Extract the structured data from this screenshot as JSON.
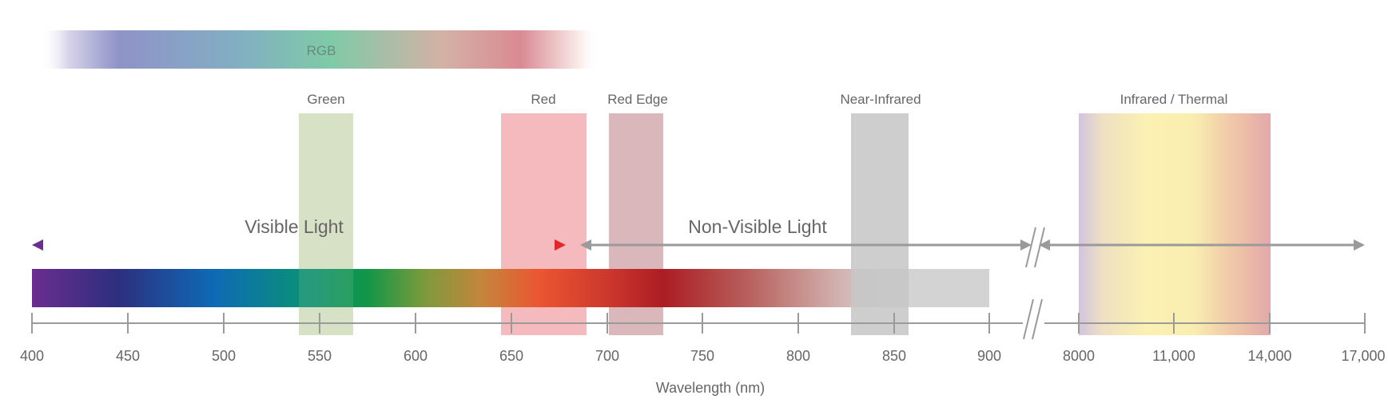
{
  "diagram": {
    "rgb_label": "RGB",
    "bands": [
      {
        "label": "Green",
        "color": "#c9d7b2"
      },
      {
        "label": "Red",
        "color": "#f2a3a8"
      },
      {
        "label": "Red Edge",
        "color": "#cc9fa4"
      },
      {
        "label": "Near-Infrared",
        "color": "#c6c6c6"
      },
      {
        "label": "Infrared / Thermal",
        "color": "#f6e7a5"
      }
    ],
    "arrows": {
      "visible": "Visible Light",
      "nonvisible": "Non-Visible Light"
    },
    "axis": {
      "title": "Wavelength (nm)",
      "ticks": [
        "400",
        "450",
        "500",
        "550",
        "600",
        "650",
        "700",
        "750",
        "800",
        "850",
        "900",
        "8000",
        "11,000",
        "14,000",
        "17,000"
      ]
    },
    "colors": {
      "axis": "#9a9a9a",
      "text": "#666666",
      "arrow_gray": "#9a9a9a",
      "spectrum_tail": "#d3d3d3"
    }
  }
}
